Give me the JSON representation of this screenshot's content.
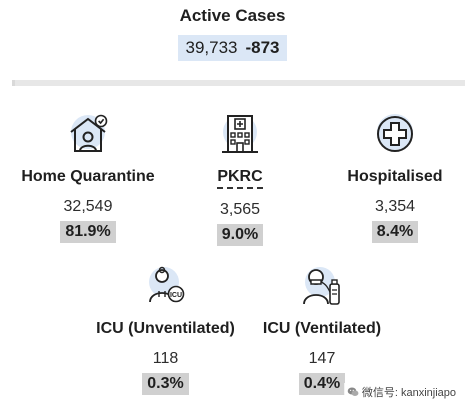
{
  "summary": {
    "title": "Active Cases",
    "total": "39,733",
    "change": "-873"
  },
  "categories": [
    {
      "id": "home",
      "name": "Home Quarantine",
      "value": "32,549",
      "percent": "81.9%",
      "icon": "house-person-icon"
    },
    {
      "id": "pkrc",
      "name": "PKRC",
      "value": "3,565",
      "percent": "9.0%",
      "icon": "building-icon"
    },
    {
      "id": "hosp",
      "name": "Hospitalised",
      "value": "3,354",
      "percent": "8.4%",
      "icon": "medical-cross-icon"
    },
    {
      "id": "icu_unvent",
      "name": "ICU (Unventilated)",
      "value": "118",
      "percent": "0.3%",
      "icon": "doctor-icu-icon"
    },
    {
      "id": "icu_vent",
      "name": "ICU (Ventilated)",
      "value": "147",
      "percent": "0.4%",
      "icon": "ventilator-patient-icon"
    }
  ],
  "watermark": "微信号: kanxinjiapo",
  "colors": {
    "icon_bg": "#dbe7f6",
    "pill_bg": "#dbe7f6",
    "percent_bg": "#d0d0d0"
  }
}
